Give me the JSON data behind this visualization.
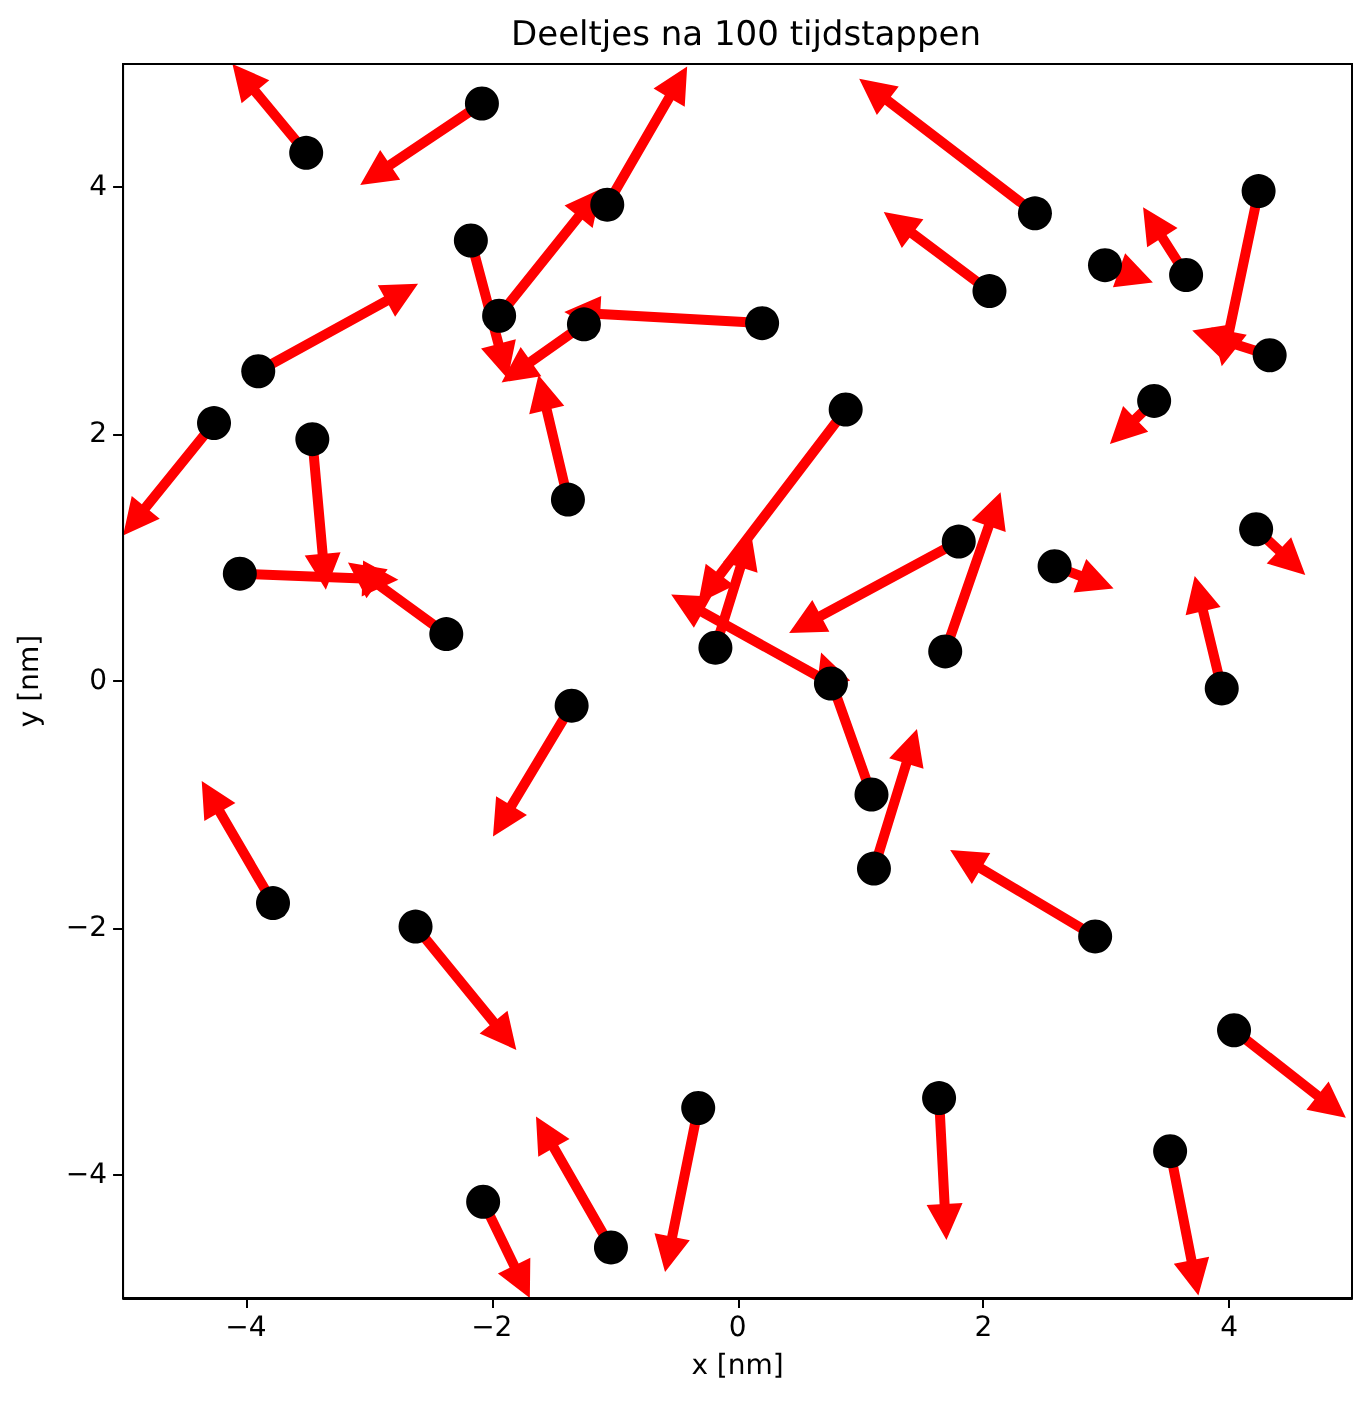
{
  "chart_data": {
    "type": "scatter",
    "title": "Deeltjes na 100 tijdstappen",
    "xlabel": "x [nm]",
    "ylabel": "y [nm]",
    "xlim": [
      -5,
      5
    ],
    "ylim": [
      -5,
      5
    ],
    "xticks": [
      {
        "value": -4,
        "label": "−4"
      },
      {
        "value": -2,
        "label": "−2"
      },
      0,
      2,
      4
    ],
    "yticks": [
      {
        "value": -4,
        "label": "−4"
      },
      {
        "value": -2,
        "label": "−2"
      },
      0,
      2,
      4
    ],
    "series": [
      {
        "color": "#000000",
        "marker": "circle",
        "x": [
          -3.51,
          -2.08,
          -1.06,
          -2.17,
          -1.94,
          -1.25,
          0.2,
          -3.9,
          -4.26,
          -3.46,
          -4.05,
          -2.37,
          -1.38,
          -1.35,
          -3.78,
          -0.18,
          0.76,
          0.88,
          1.8,
          1.69,
          2.58,
          4.22,
          3.94,
          1.09,
          1.11,
          2.91,
          2.42,
          2.05,
          2.99,
          3.65,
          4.24,
          4.33,
          3.39,
          -2.62,
          -0.32,
          -1.03,
          -2.07,
          1.64,
          3.52,
          4.04
        ],
        "values": [
          4.28,
          4.68,
          3.86,
          3.57,
          2.96,
          2.89,
          2.9,
          2.51,
          2.09,
          1.96,
          0.87,
          0.38,
          1.47,
          -0.2,
          -1.8,
          0.27,
          -0.02,
          2.2,
          1.13,
          0.24,
          0.93,
          1.23,
          -0.06,
          -0.92,
          -1.52,
          -2.07,
          3.79,
          3.16,
          3.37,
          3.29,
          3.97,
          2.64,
          2.27,
          -1.99,
          -3.46,
          -4.59,
          -4.22,
          -3.38,
          -3.81,
          -2.83
        ]
      }
    ]
  }
}
